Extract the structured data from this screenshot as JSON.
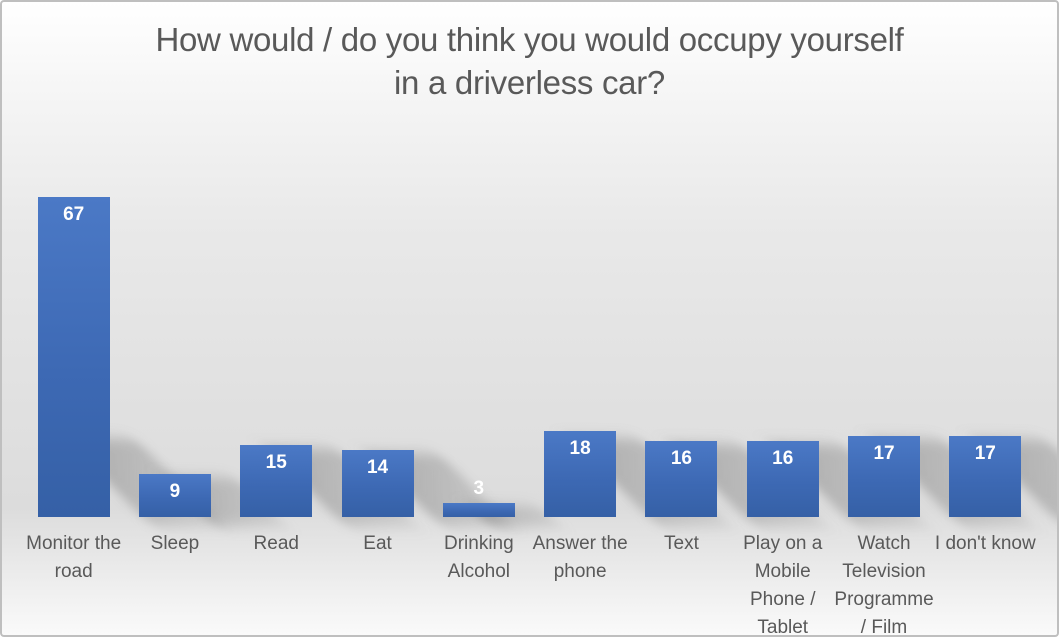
{
  "chart_data": {
    "type": "bar",
    "title": "How would / do you think you would occupy yourself in a driverless car?",
    "categories": [
      "Monitor the road",
      "Sleep",
      "Read",
      "Eat",
      "Drinking Alcohol",
      "Answer the phone",
      "Text",
      "Play on a Mobile Phone / Tablet",
      "Watch Television Programme / Film",
      "I don't know"
    ],
    "values": [
      67,
      9,
      15,
      14,
      3,
      18,
      16,
      16,
      17,
      17
    ],
    "xlabel": "",
    "ylabel": "",
    "ylim": [
      0,
      70
    ],
    "grid": false,
    "legend": "none",
    "axes_visible": false,
    "data_labels": "inside-end",
    "bar_color": "#4472c4",
    "bar_effect": "perspective-shadow-lower-right"
  },
  "title": {
    "text": "How would / do you think you would occupy yourself in a driverless car?",
    "lines": [
      "How would / do you think you would occupy yourself",
      "in a driverless car?"
    ]
  },
  "bars": [
    {
      "label": "Monitor the road",
      "label_lines": [
        "Monitor the",
        "road"
      ],
      "value": 67
    },
    {
      "label": "Sleep",
      "label_lines": [
        "Sleep"
      ],
      "value": 9
    },
    {
      "label": "Read",
      "label_lines": [
        "Read"
      ],
      "value": 15
    },
    {
      "label": "Eat",
      "label_lines": [
        "Eat"
      ],
      "value": 14
    },
    {
      "label": "Drinking Alcohol",
      "label_lines": [
        "Drinking",
        "Alcohol"
      ],
      "value": 3
    },
    {
      "label": "Answer the phone",
      "label_lines": [
        "Answer the",
        "phone"
      ],
      "value": 18
    },
    {
      "label": "Text",
      "label_lines": [
        "Text"
      ],
      "value": 16
    },
    {
      "label": "Play on a Mobile Phone / Tablet",
      "label_lines": [
        "Play on a",
        "Mobile",
        "Phone /",
        "Tablet"
      ],
      "value": 16
    },
    {
      "label": "Watch Television Programme / Film",
      "label_lines": [
        "Watch",
        "Television",
        "Programme",
        "/ Film"
      ],
      "value": 17
    },
    {
      "label": "I don't know",
      "label_lines": [
        "I don't know"
      ],
      "value": 17
    }
  ],
  "colors": {
    "title_text": "#595959",
    "category_text": "#595959",
    "value_label_text": "#ffffff",
    "bar_gradient_top": "#4b79c6",
    "bar_gradient_bottom": "#3560a6",
    "frame_border": "#bfbfbf",
    "background_top": "#ffffff",
    "background_mid": "#dcdcdc",
    "background_bottom": "#fafafa"
  }
}
